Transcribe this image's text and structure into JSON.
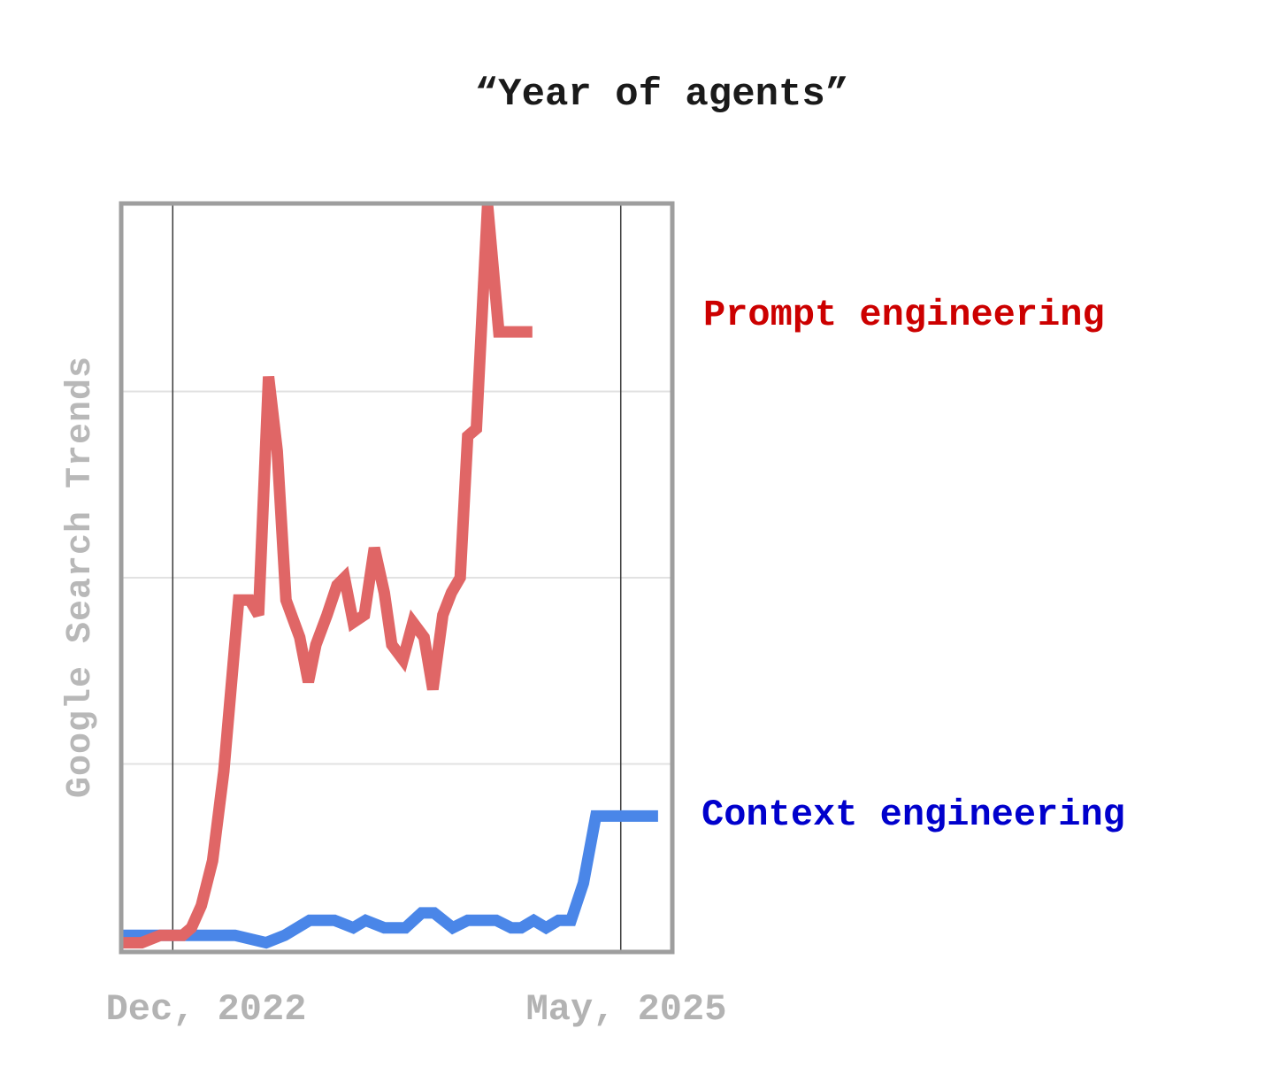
{
  "chart_data": {
    "type": "line",
    "title": "“Year of agents”",
    "ylabel": "Google Search Trends",
    "x_tick_labels": [
      "Dec, 2022",
      "May, 2025"
    ],
    "x_range": [
      0,
      44
    ],
    "x_ticks": [
      4,
      40
    ],
    "ylim": [
      0,
      100
    ],
    "gridlines_y": [
      25,
      50,
      75
    ],
    "grid": true,
    "series": [
      {
        "name": "Prompt engineering",
        "color": "#e06666",
        "label_color": "#cc0000",
        "x": [
          0,
          1.5,
          3,
          4.3,
          4.8,
          5.5,
          6.3,
          7.2,
          8.1,
          9.3,
          10.2,
          10.9,
          11.7,
          12.4,
          13.1,
          14.2,
          14.9,
          15.5,
          16.4,
          17.2,
          17.8,
          18.5,
          19.4,
          20.2,
          21.0,
          21.6,
          22.5,
          23.3,
          24.2,
          24.9,
          25.7,
          26.4,
          27.1,
          27.7,
          28.4,
          29.3,
          30.2,
          30.9,
          31.4,
          31.9,
          32.4,
          32.9
        ],
        "values": [
          1,
          1,
          2,
          2,
          2,
          3,
          6,
          12,
          24,
          47,
          47,
          45,
          77,
          67,
          47,
          42,
          36,
          41,
          45,
          49,
          50,
          44,
          45,
          54,
          48,
          41,
          39,
          44,
          42,
          35,
          45,
          48,
          50,
          69,
          70,
          100,
          83,
          83,
          83,
          83,
          83,
          83
        ]
      },
      {
        "name": "Context engineering",
        "color": "#4a86e8",
        "label_color": "#0000cc",
        "x": [
          0,
          3,
          6,
          9,
          11.5,
          13,
          15,
          17,
          18.5,
          19.5,
          21,
          22.7,
          24,
          25,
          26.5,
          27.7,
          29,
          30,
          31.2,
          32,
          33,
          34,
          35,
          36,
          37,
          38,
          39,
          40,
          41,
          42,
          43
        ],
        "values": [
          2,
          2,
          2,
          2,
          1,
          2,
          4,
          4,
          3,
          4,
          3,
          3,
          5,
          5,
          3,
          4,
          4,
          4,
          3,
          3,
          4,
          3,
          4,
          4,
          9,
          18,
          18,
          18,
          18,
          18,
          18
        ]
      }
    ]
  }
}
